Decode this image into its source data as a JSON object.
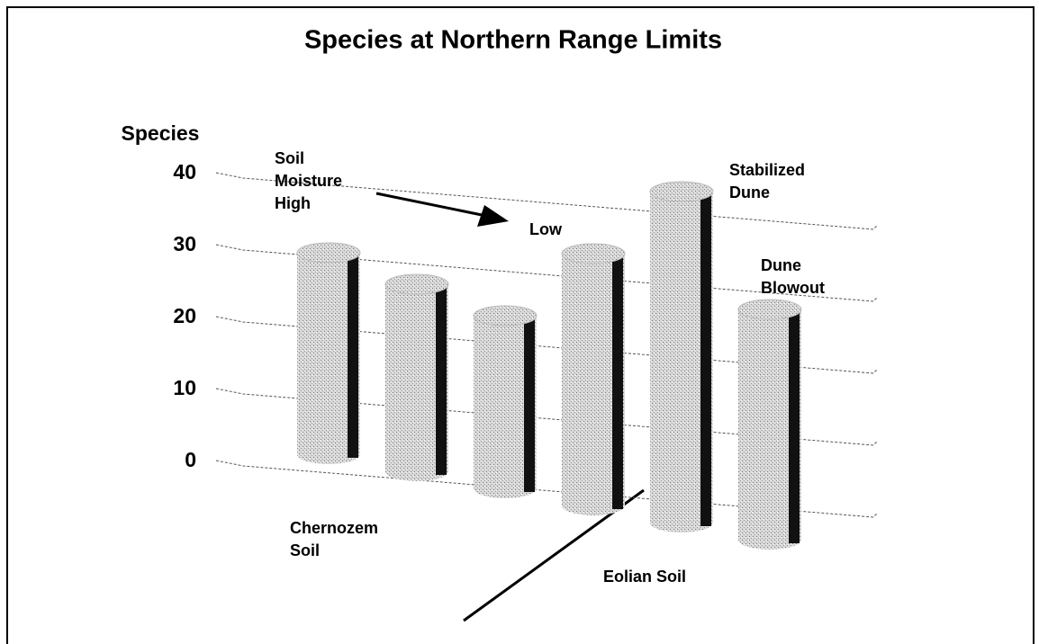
{
  "chart_data": {
    "type": "bar3d",
    "title": "Species at Northern Range Limits",
    "y_label": "Species",
    "categories": [
      null,
      null,
      null,
      null,
      null,
      null
    ],
    "values": [
      28,
      26,
      24,
      35,
      46,
      32
    ],
    "color": "#c8c8c8",
    "ylim": [
      0,
      40
    ],
    "yticks": [
      0,
      10,
      20,
      30,
      40
    ],
    "grid": true,
    "annotations": [
      {
        "lines": [
          "Soil",
          "Moisture",
          "High"
        ]
      },
      {
        "lines": [
          "Low"
        ]
      },
      {
        "lines": [
          "Stabilized",
          "Dune"
        ]
      },
      {
        "lines": [
          "Dune",
          "Blowout"
        ]
      },
      {
        "lines": [
          "Chernozem",
          "Soil"
        ]
      },
      {
        "lines": [
          "Eolian Soil"
        ]
      }
    ]
  }
}
